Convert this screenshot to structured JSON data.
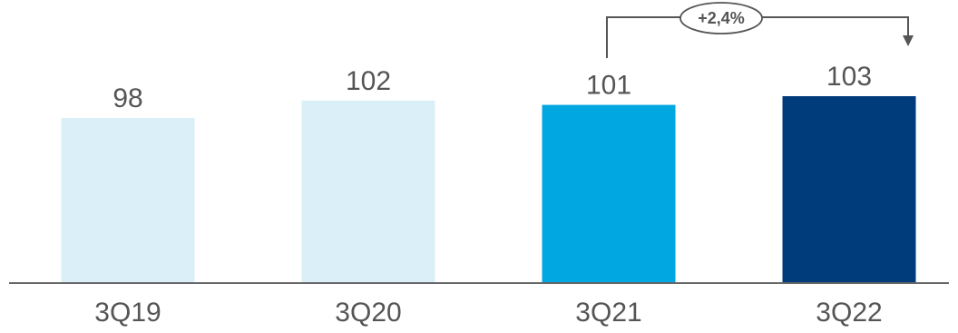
{
  "chart_data": {
    "type": "bar",
    "categories": [
      "3Q19",
      "3Q20",
      "3Q21",
      "3Q22"
    ],
    "values": [
      98,
      102,
      101,
      103
    ],
    "value_labels": [
      "98",
      "102",
      "101",
      "103"
    ],
    "colors": [
      "#daeff8",
      "#daeff8",
      "#00a7e1",
      "#003b7c"
    ],
    "axis_color": "#666666",
    "ylim": [
      0,
      110
    ],
    "grid": false,
    "legend": "none",
    "annotations": [
      {
        "text": "+2,4%",
        "from": "3Q21",
        "to": "3Q22"
      }
    ]
  }
}
